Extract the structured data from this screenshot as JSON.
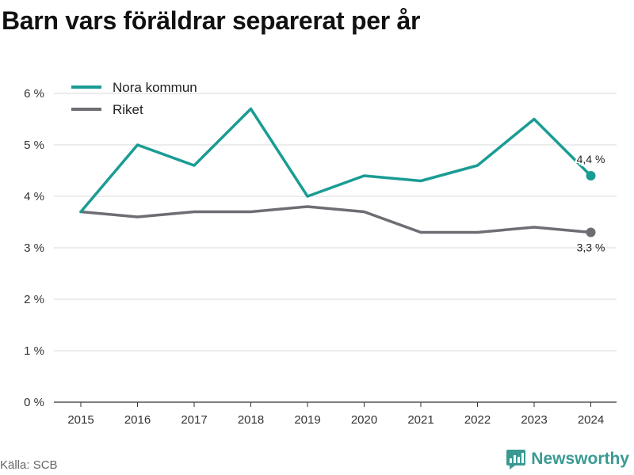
{
  "title": "Barn vars föräldrar separerat per år",
  "source": "Källa: SCB",
  "brand": "Newsworthy",
  "chart_data": {
    "type": "line",
    "title": "Barn vars föräldrar separerat per år",
    "xlabel": "",
    "ylabel": "",
    "categories": [
      "2015",
      "2016",
      "2017",
      "2018",
      "2019",
      "2020",
      "2021",
      "2022",
      "2023",
      "2024"
    ],
    "ylim": [
      0,
      6
    ],
    "yticks": [
      0,
      1,
      2,
      3,
      4,
      5,
      6
    ],
    "ytick_labels": [
      "0 %",
      "1 %",
      "2 %",
      "3 %",
      "4 %",
      "5 %",
      "6 %"
    ],
    "grid": true,
    "legend": "top-left",
    "series": [
      {
        "name": "Nora kommun",
        "color": "#1a9c94",
        "values": [
          3.7,
          5.0,
          4.6,
          5.7,
          4.0,
          4.4,
          4.3,
          4.6,
          5.5,
          4.4
        ],
        "end_label": "4,4 %"
      },
      {
        "name": "Riket",
        "color": "#6d6d73",
        "values": [
          3.7,
          3.6,
          3.7,
          3.7,
          3.8,
          3.7,
          3.3,
          3.3,
          3.4,
          3.3
        ],
        "end_label": "3,3 %"
      }
    ]
  }
}
